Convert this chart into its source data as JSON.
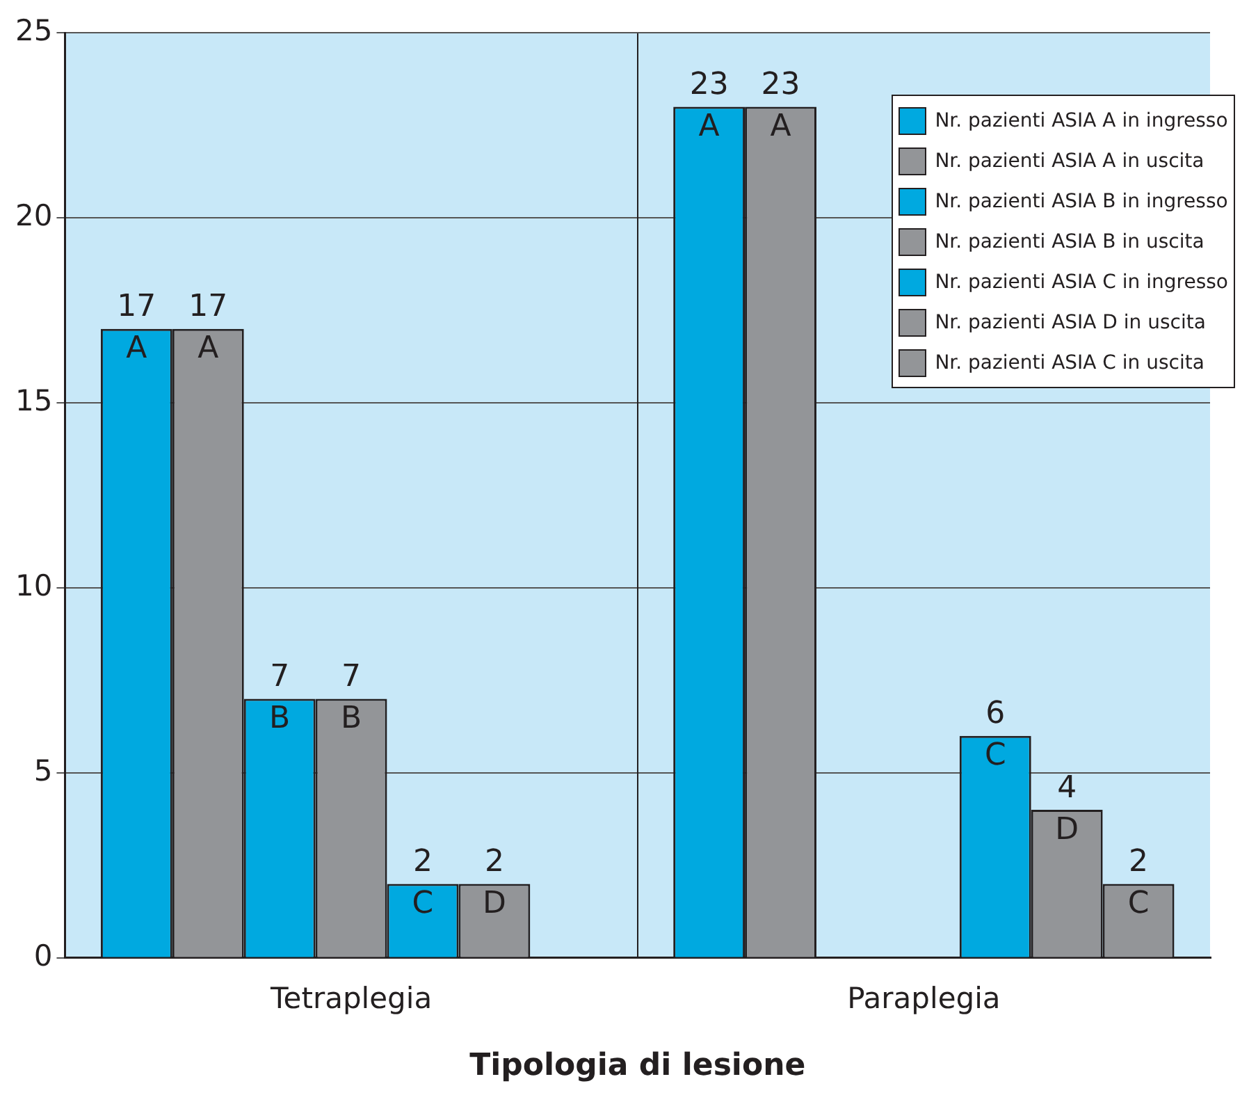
{
  "chart_data": {
    "type": "bar",
    "xlabel": "Tipologia di lesione",
    "categories": [
      "Tetraplegia",
      "Paraplegia"
    ],
    "series": [
      {
        "name": "Nr. pazienti ASIA A in ingresso",
        "color": "#00a9e0",
        "values": [
          17,
          23
        ]
      },
      {
        "name": "Nr. pazienti ASIA A in uscita",
        "color": "#939598",
        "values": [
          17,
          23
        ]
      },
      {
        "name": "Nr. pazienti ASIA B in ingresso",
        "color": "#00a9e0",
        "values": [
          7,
          null
        ]
      },
      {
        "name": "Nr. pazienti ASIA B in uscita",
        "color": "#939598",
        "values": [
          7,
          null
        ]
      },
      {
        "name": "Nr. pazienti ASIA C in ingresso",
        "color": "#00a9e0",
        "values": [
          2,
          6
        ]
      },
      {
        "name": "Nr. pazienti ASIA D in uscita",
        "color": "#939598",
        "values": [
          2,
          4
        ]
      },
      {
        "name": "Nr. pazienti ASIA C in uscita",
        "color": "#939598",
        "values": [
          null,
          2
        ]
      }
    ],
    "ylim": [
      0,
      25
    ],
    "yticks": [
      0,
      5,
      10,
      15,
      20,
      25
    ],
    "grid": "y",
    "legend": "top right",
    "data_labels": true,
    "annotations": [
      "A",
      "A",
      "B",
      "B",
      "C",
      "D",
      "A",
      "A",
      "C",
      "D",
      "C"
    ]
  }
}
